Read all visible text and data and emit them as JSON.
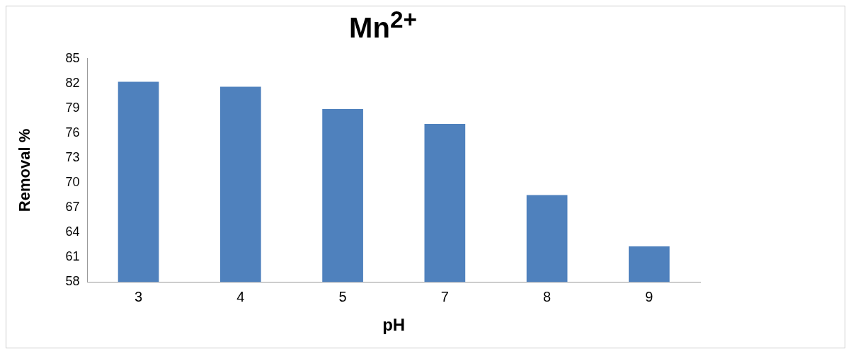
{
  "chart_data": {
    "type": "bar",
    "title": "Mn$^{2+}$",
    "xlabel": "pH",
    "ylabel": "Removal %",
    "categories": [
      "3",
      "4",
      "5",
      "7",
      "8",
      "9"
    ],
    "values": [
      82.2,
      81.6,
      78.9,
      77.1,
      68.5,
      62.3
    ],
    "color": "#4f81bd",
    "ylim": [
      58,
      85
    ],
    "yticks": [
      58,
      61,
      64,
      67,
      70,
      73,
      76,
      79,
      82,
      85
    ],
    "grid": false,
    "legend": false
  }
}
